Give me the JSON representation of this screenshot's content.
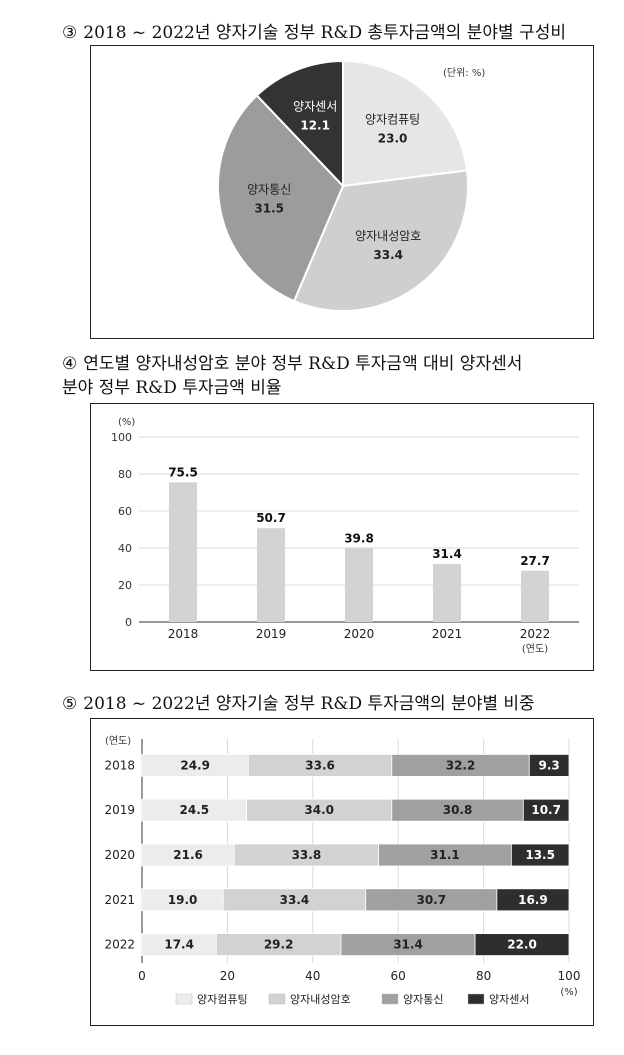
{
  "sections": {
    "s3": {
      "num": "③",
      "title": "2018 ~ 2022년 양자기술 정부 R&D 총투자금액의 분야별 구성비"
    },
    "s4": {
      "num": "④",
      "title_line1": "연도별 양자내성암호 분야 정부 R&D 투자금액 대비 양자센서",
      "title_line2": "분야 정부 R&D 투자금액 비율"
    },
    "s5": {
      "num": "⑤",
      "title": "2018 ~ 2022년 양자기술 정부 R&D 투자금액의 분야별 비중"
    }
  },
  "chart_data": [
    {
      "type": "pie",
      "unit_note": "(단위: %)",
      "labels": [
        "양자컴퓨팅",
        "양자내성암호",
        "양자통신",
        "양자센서"
      ],
      "values": [
        23.0,
        33.4,
        31.5,
        12.1
      ],
      "value_labels": [
        "23.0",
        "33.4",
        "31.5",
        "12.1"
      ],
      "colors": [
        "#e6e6e6",
        "#cfcfcf",
        "#9c9c9c",
        "#333333"
      ],
      "label_colors": [
        "#222222",
        "#222222",
        "#222222",
        "#ffffff"
      ]
    },
    {
      "type": "bar",
      "ylabel": "(%)",
      "xlabel_note": "(연도)",
      "categories": [
        "2018",
        "2019",
        "2020",
        "2021",
        "2022"
      ],
      "values": [
        75.5,
        50.7,
        39.8,
        31.4,
        27.7
      ],
      "value_labels": [
        "75.5",
        "50.7",
        "39.8",
        "31.4",
        "27.7"
      ],
      "ylim": [
        0,
        100
      ],
      "yticks": [
        "0",
        "20",
        "40",
        "60",
        "80",
        "100"
      ],
      "ytick_values": [
        0,
        20,
        40,
        60,
        80,
        100
      ],
      "grid": true,
      "bar_color": "#d3d3d3"
    },
    {
      "type": "bar",
      "orientation": "horizontal",
      "stacked": true,
      "ylabel": "(연도)",
      "xlabel": "(%)",
      "categories": [
        "2018",
        "2019",
        "2020",
        "2021",
        "2022"
      ],
      "series": [
        {
          "name": "양자컴퓨팅",
          "values": [
            24.9,
            24.5,
            21.6,
            19.0,
            17.4
          ],
          "labels": [
            "24.9",
            "24.5",
            "21.6",
            "19.0",
            "17.4"
          ],
          "color": "#ececec",
          "text_color": "#222222"
        },
        {
          "name": "양자내성암호",
          "values": [
            33.6,
            34.0,
            33.8,
            33.4,
            29.2
          ],
          "labels": [
            "33.6",
            "34.0",
            "33.8",
            "33.4",
            "29.2"
          ],
          "color": "#d2d2d2",
          "text_color": "#222222"
        },
        {
          "name": "양자통신",
          "values": [
            32.2,
            30.8,
            31.1,
            30.7,
            31.4
          ],
          "labels": [
            "32.2",
            "30.8",
            "31.1",
            "30.7",
            "31.4"
          ],
          "color": "#a0a0a0",
          "text_color": "#222222"
        },
        {
          "name": "양자센서",
          "values": [
            9.3,
            10.7,
            13.5,
            16.9,
            22.0
          ],
          "labels": [
            "9.3",
            "10.7",
            "13.5",
            "16.9",
            "22.0"
          ],
          "color": "#2e2e2e",
          "text_color": "#ffffff"
        }
      ],
      "xlim": [
        0,
        100
      ],
      "xticks": [
        "0",
        "20",
        "40",
        "60",
        "80",
        "100"
      ],
      "xtick_values": [
        0,
        20,
        40,
        60,
        80,
        100
      ],
      "grid": true,
      "legend_position": "bottom"
    }
  ]
}
